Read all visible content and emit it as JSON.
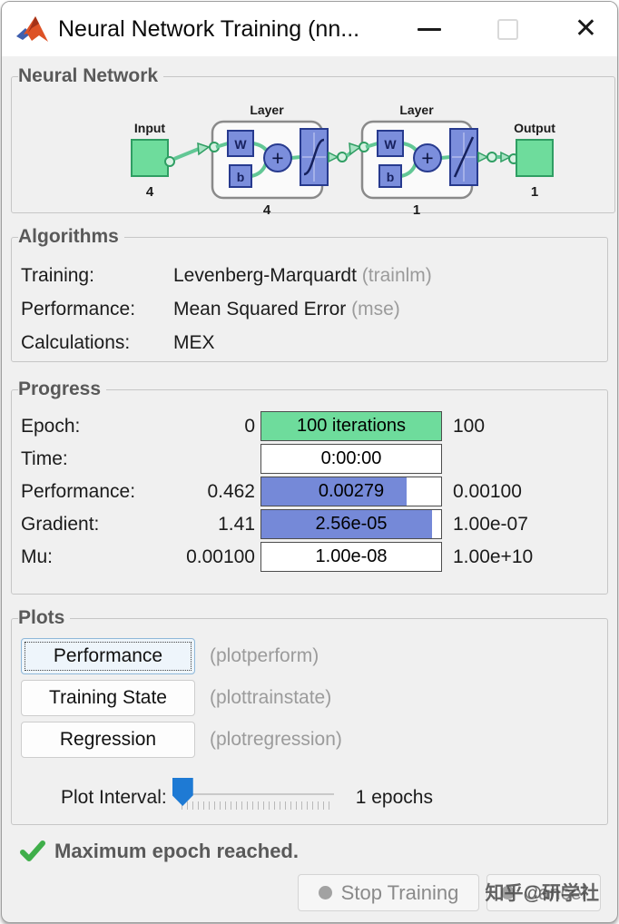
{
  "window": {
    "title": "Neural Network Training (nn...",
    "icons": {
      "app": "matlab-logo",
      "minimize": "minimize-icon",
      "maximize": "maximize-icon",
      "close": "close-icon"
    }
  },
  "network": {
    "section_title": "Neural Network",
    "input": {
      "label": "Input",
      "size": "4"
    },
    "layers": [
      {
        "label": "Layer",
        "weight": "W",
        "bias": "b",
        "sum": "+",
        "size": "4",
        "transfer": "tansig"
      },
      {
        "label": "Layer",
        "weight": "W",
        "bias": "b",
        "sum": "+",
        "size": "1",
        "transfer": "purelin"
      }
    ],
    "output": {
      "label": "Output",
      "size": "1"
    }
  },
  "algorithms": {
    "section_title": "Algorithms",
    "rows": [
      {
        "label": "Training:",
        "value": "Levenberg-Marquardt",
        "code": " (trainlm)"
      },
      {
        "label": "Performance:",
        "value": "Mean Squared Error",
        "code": " (mse)"
      },
      {
        "label": "Calculations:",
        "value": "MEX",
        "code": ""
      }
    ]
  },
  "progress": {
    "section_title": "Progress",
    "rows": [
      {
        "label": "Epoch:",
        "min": "0",
        "bar_text": "100 iterations",
        "max": "100",
        "fill": 100,
        "fill_color": "#6edc9c"
      },
      {
        "label": "Time:",
        "min": "",
        "bar_text": "0:00:00",
        "max": "",
        "fill": 0,
        "fill_color": "#ffffff"
      },
      {
        "label": "Performance:",
        "min": "0.462",
        "bar_text": "0.00279",
        "max": "0.00100",
        "fill": 81,
        "fill_color": "#7589d8"
      },
      {
        "label": "Gradient:",
        "min": "1.41",
        "bar_text": "2.56e-05",
        "max": "1.00e-07",
        "fill": 95,
        "fill_color": "#7589d8"
      },
      {
        "label": "Mu:",
        "min": "0.00100",
        "bar_text": "1.00e-08",
        "max": "1.00e+10",
        "fill": 0,
        "fill_color": "#ffffff"
      }
    ]
  },
  "plots": {
    "section_title": "Plots",
    "buttons": [
      {
        "label": "Performance",
        "code": "(plotperform)"
      },
      {
        "label": "Training State",
        "code": "(plottrainstate)"
      },
      {
        "label": "Regression",
        "code": "(plotregression)"
      }
    ],
    "interval": {
      "label": "Plot Interval:",
      "value": "1 epochs"
    }
  },
  "status": {
    "message": "Maximum epoch reached."
  },
  "footer": {
    "stop_button": "Stop Training",
    "cancel_button": "Cancel",
    "watermark": "知乎@研学社"
  },
  "colors": {
    "node_green": "#6edc9c",
    "node_blue": "#7b8edc",
    "bar_green": "#6edc9c",
    "bar_blue": "#7589d8",
    "slider_blue": "#1e7ad4",
    "check_green": "#3fae4a"
  }
}
